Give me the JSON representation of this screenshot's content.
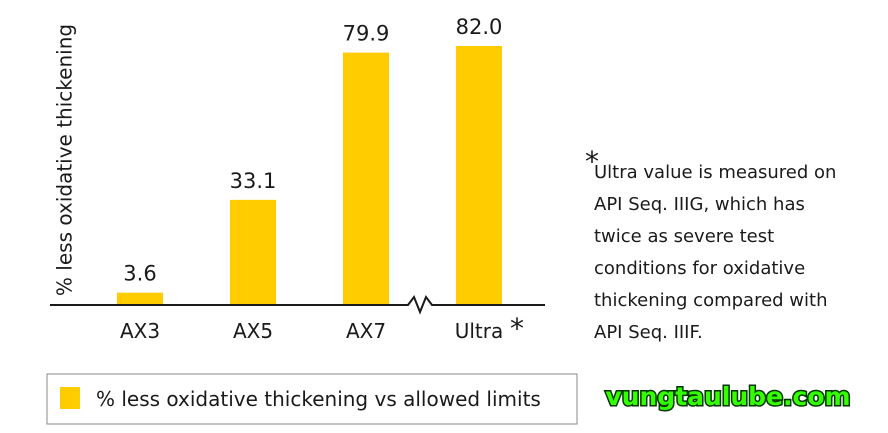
{
  "chart_data": {
    "type": "bar",
    "y_label": "% less oxidative thickening",
    "categories": [
      "AX3",
      "AX5",
      "AX7",
      "Ultra"
    ],
    "series": [
      {
        "name": "% less oxidative thickening vs allowed limits",
        "color": "#ffcc00",
        "values": [
          3.6,
          33.1,
          79.9,
          82.0
        ],
        "value_labels": [
          "3.6",
          "33.1",
          "79.9",
          "82.0"
        ]
      }
    ],
    "category_marker": "*",
    "note_marker": "*",
    "note_lines": [
      "Ultra value is measured on",
      "API Seq. IIIG, which has",
      "twice as severe test",
      "conditions for oxidative",
      "thickening compared with",
      "API Seq. IIIF."
    ],
    "watermark": "vungtaulube.com"
  }
}
